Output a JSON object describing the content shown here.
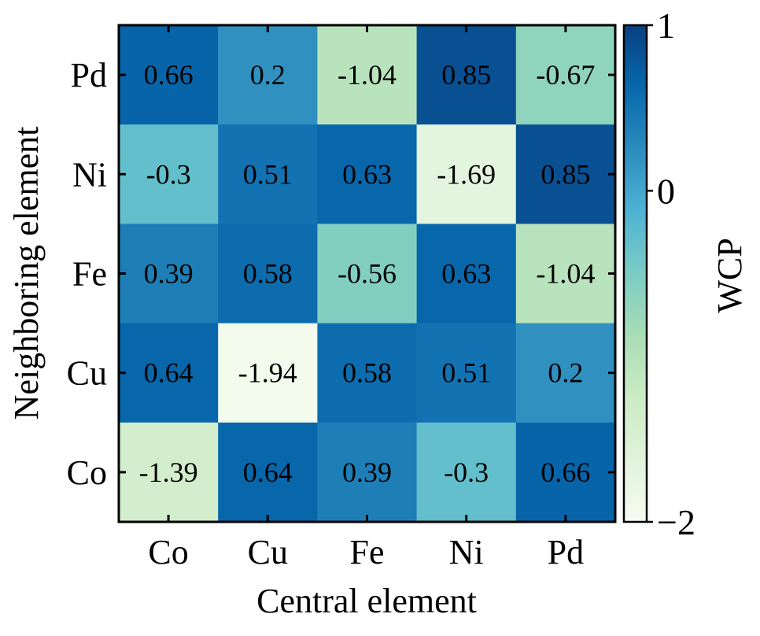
{
  "chart_data": {
    "type": "heatmap",
    "xlabel": "Central element",
    "ylabel": "Neighboring element",
    "x_categories": [
      "Co",
      "Cu",
      "Fe",
      "Ni",
      "Pd"
    ],
    "y_categories_top_to_bottom": [
      "Pd",
      "Ni",
      "Fe",
      "Cu",
      "Co"
    ],
    "values_top_to_bottom": [
      [
        0.66,
        0.2,
        -1.04,
        0.85,
        -0.67
      ],
      [
        -0.3,
        0.51,
        0.63,
        -1.69,
        0.85
      ],
      [
        0.39,
        0.58,
        -0.56,
        0.63,
        -1.04
      ],
      [
        0.64,
        -1.94,
        0.58,
        0.51,
        0.2
      ],
      [
        -1.39,
        0.64,
        0.39,
        -0.3,
        0.66
      ]
    ],
    "value_labels_top_to_bottom": [
      [
        "0.66",
        "0.2",
        "-1.04",
        "0.85",
        "-0.67"
      ],
      [
        "-0.3",
        "0.51",
        "0.63",
        "-1.69",
        "0.85"
      ],
      [
        "0.39",
        "0.58",
        "-0.56",
        "0.63",
        "-1.04"
      ],
      [
        "0.64",
        "-1.94",
        "0.58",
        "0.51",
        "0.2"
      ],
      [
        "-1.39",
        "0.64",
        "0.39",
        "-0.3",
        "0.66"
      ]
    ],
    "colorbar": {
      "label": "WCP",
      "range": [
        -2,
        1
      ],
      "ticks": [
        1,
        0,
        -2
      ],
      "tick_labels": [
        "1",
        "0",
        "−2"
      ],
      "colormap": "GnBu",
      "color_stops": [
        "#f7fcf0",
        "#e0f3db",
        "#ccebc5",
        "#a8ddb5",
        "#7bccc4",
        "#4eb3d3",
        "#2b8cbe",
        "#0868ac",
        "#084081"
      ]
    }
  }
}
